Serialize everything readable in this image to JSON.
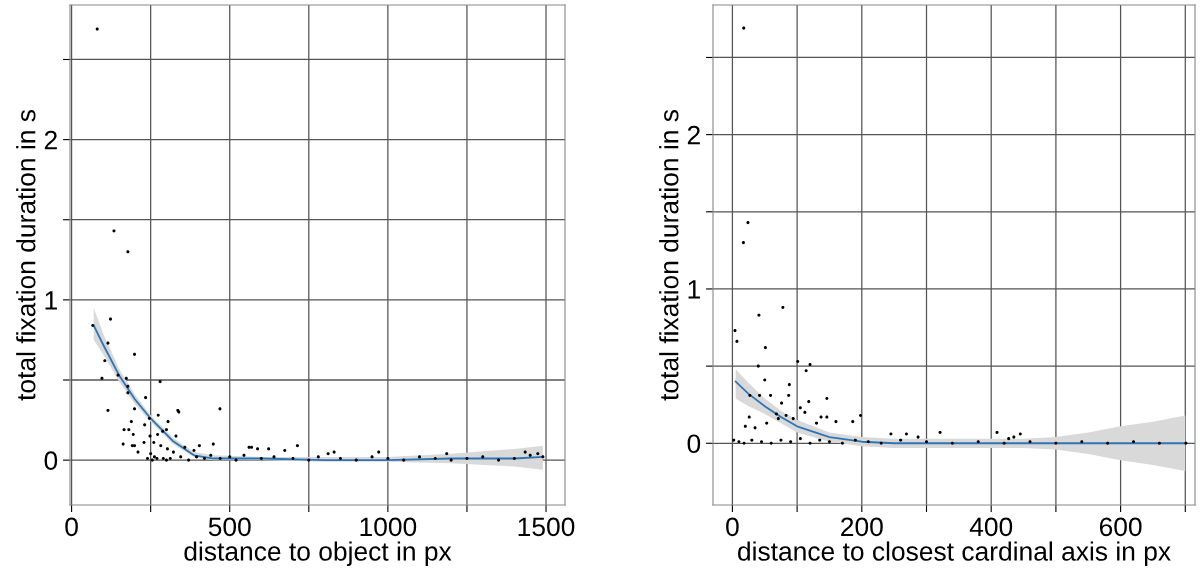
{
  "chart_data": [
    {
      "type": "scatter",
      "xlabel": "distance to object in px",
      "ylabel": "total fixation duration in s",
      "xlim": [
        -5,
        1560
      ],
      "ylim": [
        -0.28,
        2.84
      ],
      "xticks": [
        0,
        {
          "value": 250,
          "label": null
        },
        500,
        {
          "value": 750,
          "label": null
        },
        1000,
        {
          "value": 1250,
          "label": null
        },
        1500
      ],
      "yticks": [
        0,
        {
          "value": 0.5,
          "label": null
        },
        1,
        {
          "value": 1.5,
          "label": null
        },
        2,
        {
          "value": 2.5,
          "label": null
        }
      ],
      "grid": true,
      "series": [
        {
          "marker": "circle",
          "color": "#000000",
          "x": [
            81,
            134,
            178,
            123,
            67,
            115,
            199,
            105,
            96,
            147,
            173,
            178,
            178,
            280,
            115,
            234,
            199,
            469,
            336,
            339,
            274,
            246,
            231,
            189,
            166,
            181,
            195,
            163,
            192,
            199,
            210,
            305,
            288,
            272,
            300,
            330,
            248,
            229,
            260,
            282,
            303,
            322,
            250,
            270,
            290,
            404,
            448,
            387,
            358,
            561,
            569,
            588,
            623,
            674,
            714,
            811,
            830,
            971,
            1186,
            1434,
            1474,
            240,
            255,
            262,
            300,
            312,
            345,
            370,
            395,
            420,
            440,
            470,
            500,
            520,
            545,
            600,
            640,
            700,
            750,
            780,
            850,
            900,
            950,
            1000,
            1050,
            1100,
            1150,
            1200,
            1250,
            1300,
            1350,
            1400,
            1450,
            1490
          ],
          "values": [
            2.69,
            1.43,
            1.3,
            0.88,
            0.84,
            0.73,
            0.66,
            0.62,
            0.51,
            0.53,
            0.51,
            0.46,
            0.42,
            0.49,
            0.31,
            0.39,
            0.32,
            0.32,
            0.31,
            0.3,
            0.28,
            0.26,
            0.22,
            0.24,
            0.19,
            0.19,
            0.16,
            0.1,
            0.09,
            0.09,
            0.05,
            0.24,
            0.18,
            0.16,
            0.19,
            0.15,
            0.15,
            0.11,
            0.11,
            0.09,
            0.07,
            0.05,
            0.04,
            0.01,
            0.01,
            0.09,
            0.1,
            0.06,
            0.08,
            0.08,
            0.08,
            0.07,
            0.07,
            0.06,
            0.09,
            0.04,
            0.05,
            0.05,
            0.04,
            0.05,
            0.04,
            0.01,
            0.0,
            0.02,
            0.0,
            0.01,
            0.02,
            0.0,
            0.02,
            0.01,
            0.03,
            0.01,
            0.02,
            0.0,
            0.03,
            0.01,
            0.02,
            0.01,
            0.0,
            0.02,
            0.01,
            0.0,
            0.02,
            0.01,
            0.0,
            0.02,
            0.01,
            0.0,
            0.01,
            0.02,
            0.0,
            0.01,
            0.03,
            0.02
          ]
        },
        {
          "type": "line",
          "color": "#2e75b6",
          "x": [
            70,
            100,
            150,
            200,
            250,
            320,
            387,
            450,
            600,
            800,
            1000,
            1200,
            1400,
            1490
          ],
          "values": [
            0.84,
            0.72,
            0.53,
            0.38,
            0.26,
            0.12,
            0.03,
            0.01,
            0.01,
            0.0,
            0.0,
            0.01,
            0.01,
            0.02
          ],
          "lower": [
            0.75,
            0.66,
            0.49,
            0.35,
            0.24,
            0.1,
            0.02,
            0.0,
            0.0,
            -0.01,
            -0.01,
            -0.02,
            -0.04,
            -0.06
          ],
          "upper": [
            0.95,
            0.79,
            0.57,
            0.41,
            0.28,
            0.14,
            0.05,
            0.03,
            0.02,
            0.02,
            0.02,
            0.04,
            0.07,
            0.09
          ]
        }
      ]
    },
    {
      "type": "scatter",
      "xlabel": "distance to closest cardinal axis in px",
      "ylabel": "total fixation duration in s",
      "xlim": [
        -30,
        715
      ],
      "ylim": [
        -0.4,
        2.84
      ],
      "xticks": [
        0,
        {
          "value": 100,
          "label": null
        },
        200,
        {
          "value": 300,
          "label": null
        },
        400,
        {
          "value": 500,
          "label": null
        },
        600,
        {
          "value": 700,
          "label": null
        }
      ],
      "yticks": [
        0,
        {
          "value": 0.5,
          "label": null
        },
        1,
        {
          "value": 1.5,
          "label": null
        },
        2,
        {
          "value": 2.5,
          "label": null
        }
      ],
      "grid": true,
      "series": [
        {
          "marker": "circle",
          "color": "#000000",
          "x": [
            17.5,
            24,
            17,
            78,
            41,
            4,
            7,
            51,
            40,
            101,
            120,
            114,
            50,
            88,
            87,
            42,
            59,
            146,
            76,
            27,
            105,
            118,
            112,
            68,
            83,
            94,
            26,
            53,
            20,
            35,
            137,
            146,
            160,
            186,
            198,
            130,
            71,
            245,
            269,
            287,
            321,
            409,
            427,
            435,
            445,
            701,
            2,
            10,
            18,
            30,
            45,
            60,
            75,
            90,
            105,
            120,
            135,
            150,
            170,
            190,
            210,
            230,
            260,
            300,
            340,
            380,
            420,
            460,
            500,
            540,
            580,
            620,
            660
          ],
          "values": [
            2.69,
            1.43,
            1.3,
            0.88,
            0.83,
            0.73,
            0.66,
            0.62,
            0.5,
            0.53,
            0.51,
            0.47,
            0.41,
            0.38,
            0.31,
            0.31,
            0.31,
            0.29,
            0.26,
            0.31,
            0.23,
            0.27,
            0.2,
            0.19,
            0.18,
            0.16,
            0.17,
            0.13,
            0.11,
            0.1,
            0.17,
            0.17,
            0.14,
            0.14,
            0.18,
            0.13,
            0.16,
            0.06,
            0.06,
            0.04,
            0.07,
            0.07,
            0.03,
            0.04,
            0.06,
            0.0,
            0.02,
            0.01,
            0.0,
            0.02,
            0.01,
            0.0,
            0.02,
            0.01,
            0.03,
            0.0,
            0.02,
            0.01,
            0.0,
            0.02,
            0.01,
            0.0,
            0.02,
            0.01,
            0.0,
            0.01,
            0.0,
            0.01,
            0.0,
            0.01,
            0.0,
            0.01,
            0.0
          ]
        },
        {
          "type": "line",
          "color": "#2e75b6",
          "x": [
            5,
            25,
            50,
            75,
            100,
            150,
            200,
            250,
            300,
            400,
            450,
            500,
            550,
            600,
            650,
            700
          ],
          "values": [
            0.4,
            0.32,
            0.24,
            0.17,
            0.11,
            0.04,
            0.01,
            0.0,
            0.0,
            0.0,
            0.0,
            0.0,
            0.0,
            0.0,
            0.0,
            0.0
          ],
          "lower": [
            0.29,
            0.24,
            0.19,
            0.13,
            0.07,
            0.01,
            -0.02,
            -0.03,
            -0.03,
            -0.03,
            -0.03,
            -0.04,
            -0.07,
            -0.11,
            -0.14,
            -0.18
          ],
          "upper": [
            0.48,
            0.39,
            0.29,
            0.21,
            0.15,
            0.07,
            0.04,
            0.03,
            0.03,
            0.03,
            0.03,
            0.04,
            0.07,
            0.11,
            0.14,
            0.18
          ]
        }
      ]
    }
  ]
}
